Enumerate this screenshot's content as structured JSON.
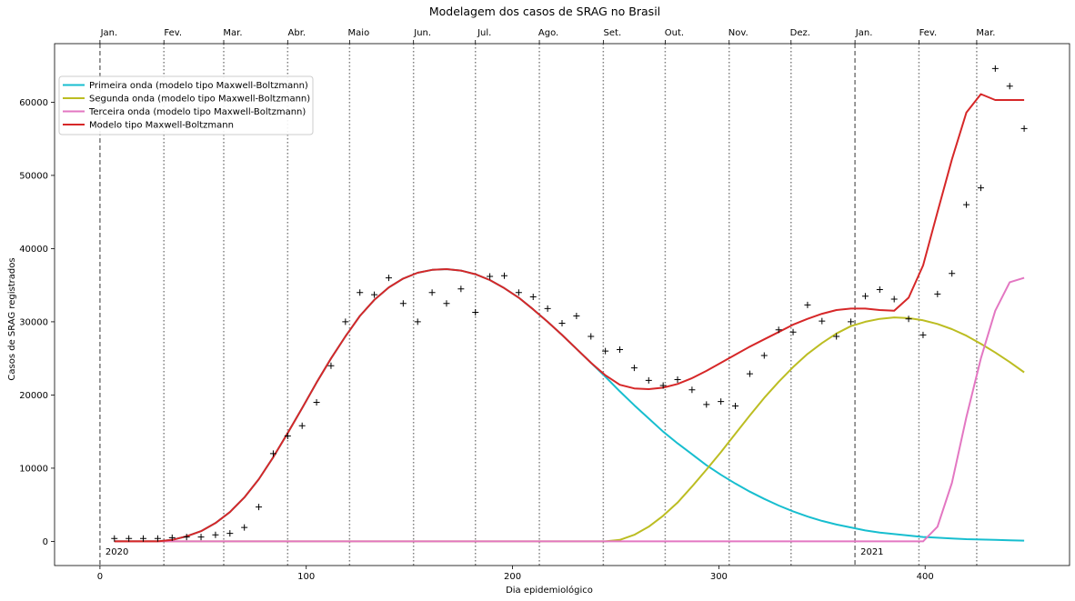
{
  "chart_data": {
    "type": "line",
    "title": "Modelagem dos casos de SRAG no Brasil",
    "xlabel": "Dia epidemiológico",
    "ylabel": "Casos de SRAG registrados",
    "xlim": [
      -22,
      470
    ],
    "ylim": [
      -3300,
      68000
    ],
    "x_ticks": [
      0,
      100,
      200,
      300,
      400
    ],
    "y_ticks": [
      0,
      10000,
      20000,
      30000,
      40000,
      50000,
      60000
    ],
    "month_ticks": [
      {
        "label": "Jan.",
        "x": 0
      },
      {
        "label": "Fev.",
        "x": 31
      },
      {
        "label": "Mar.",
        "x": 60
      },
      {
        "label": "Abr.",
        "x": 91
      },
      {
        "label": "Maio",
        "x": 121
      },
      {
        "label": "Jun.",
        "x": 152
      },
      {
        "label": "Jul.",
        "x": 182
      },
      {
        "label": "Ago.",
        "x": 213
      },
      {
        "label": "Set.",
        "x": 244
      },
      {
        "label": "Out.",
        "x": 274
      },
      {
        "label": "Nov.",
        "x": 305
      },
      {
        "label": "Dez.",
        "x": 335
      },
      {
        "label": "Jan.",
        "x": 366
      },
      {
        "label": "Fev.",
        "x": 397
      },
      {
        "label": "Mar.",
        "x": 425
      }
    ],
    "year_markers": [
      {
        "label": "2020",
        "x": 0
      },
      {
        "label": "2021",
        "x": 366
      }
    ],
    "legend_position": "top-left",
    "grid": false,
    "x": [
      7,
      14,
      21,
      28,
      35,
      42,
      49,
      56,
      63,
      70,
      77,
      84,
      91,
      98,
      105,
      112,
      119,
      126,
      133,
      140,
      147,
      154,
      161,
      168,
      175,
      182,
      189,
      196,
      203,
      210,
      217,
      224,
      231,
      238,
      245,
      252,
      259,
      266,
      273,
      280,
      287,
      294,
      301,
      308,
      315,
      322,
      329,
      336,
      343,
      350,
      357,
      364,
      371,
      378,
      385,
      392,
      399,
      406,
      413,
      420,
      427,
      434,
      441,
      448
    ],
    "series": [
      {
        "name": "Primeira onda (modelo tipo Maxwell-Boltzmann)",
        "color": "#17becf",
        "values": [
          0,
          0,
          0,
          0,
          200,
          700,
          1400,
          2500,
          4000,
          6000,
          8500,
          11500,
          14800,
          18200,
          21700,
          25000,
          28000,
          30800,
          33000,
          34700,
          35900,
          36700,
          37100,
          37200,
          37000,
          36500,
          35700,
          34600,
          33300,
          31700,
          30000,
          28200,
          26300,
          24400,
          22500,
          20500,
          18600,
          16800,
          15000,
          13400,
          11900,
          10400,
          9100,
          7900,
          6800,
          5800,
          4900,
          4100,
          3400,
          2800,
          2300,
          1900,
          1500,
          1200,
          1000,
          800,
          600,
          500,
          400,
          300,
          250,
          200,
          150,
          100
        ]
      },
      {
        "name": "Segunda onda (modelo tipo Maxwell-Boltzmann)",
        "color": "#bcbd22",
        "values": [
          0,
          0,
          0,
          0,
          0,
          0,
          0,
          0,
          0,
          0,
          0,
          0,
          0,
          0,
          0,
          0,
          0,
          0,
          0,
          0,
          0,
          0,
          0,
          0,
          0,
          0,
          0,
          0,
          0,
          0,
          0,
          0,
          0,
          0,
          0,
          200,
          900,
          2000,
          3500,
          5300,
          7500,
          9800,
          12200,
          14700,
          17200,
          19600,
          21800,
          23800,
          25600,
          27100,
          28400,
          29400,
          30000,
          30400,
          30600,
          30500,
          30200,
          29700,
          29000,
          28100,
          27000,
          25800,
          24500,
          23100
        ]
      },
      {
        "name": "Terceira onda (modelo tipo Maxwell-Boltzmann)",
        "color": "#e377c2",
        "values": [
          0,
          0,
          0,
          0,
          0,
          0,
          0,
          0,
          0,
          0,
          0,
          0,
          0,
          0,
          0,
          0,
          0,
          0,
          0,
          0,
          0,
          0,
          0,
          0,
          0,
          0,
          0,
          0,
          0,
          0,
          0,
          0,
          0,
          0,
          0,
          0,
          0,
          0,
          0,
          0,
          0,
          0,
          0,
          0,
          0,
          0,
          0,
          0,
          0,
          0,
          0,
          0,
          0,
          0,
          0,
          0,
          0,
          2000,
          8000,
          17000,
          25000,
          31500,
          35400,
          36000
        ]
      },
      {
        "name": "Modelo tipo Maxwell-Boltzmann",
        "color": "#d62728",
        "values": [
          0,
          0,
          0,
          0,
          200,
          700,
          1400,
          2500,
          4000,
          6000,
          8500,
          11500,
          14800,
          18200,
          21700,
          25000,
          28000,
          30800,
          33000,
          34700,
          35900,
          36700,
          37100,
          37200,
          37000,
          36500,
          35700,
          34600,
          33300,
          31700,
          30000,
          28200,
          26300,
          24400,
          22700,
          21400,
          20900,
          20800,
          21000,
          21500,
          22300,
          23300,
          24400,
          25500,
          26600,
          27600,
          28600,
          29600,
          30400,
          31100,
          31600,
          31800,
          31800,
          31600,
          31500,
          33300,
          37700,
          45000,
          52200,
          58600,
          61100,
          60300,
          60300,
          60300
        ]
      }
    ],
    "observed": {
      "marker": "+",
      "x": [
        7,
        14,
        21,
        28,
        35,
        42,
        49,
        56,
        63,
        70,
        77,
        84,
        91,
        98,
        105,
        112,
        119,
        126,
        133,
        140,
        147,
        154,
        161,
        168,
        175,
        182,
        189,
        196,
        203,
        210,
        217,
        224,
        231,
        238,
        245,
        252,
        259,
        266,
        273,
        280,
        287,
        294,
        301,
        308,
        315,
        322,
        329,
        336,
        343,
        350,
        357,
        364,
        371,
        378,
        385,
        392,
        399,
        406,
        413,
        420,
        427,
        434,
        441,
        448
      ],
      "y": [
        400,
        400,
        400,
        400,
        500,
        600,
        600,
        900,
        1100,
        1900,
        4700,
        12000,
        14400,
        15800,
        19000,
        24000,
        30000,
        34000,
        33700,
        36000,
        32500,
        30000,
        34000,
        32500,
        34500,
        31300,
        36200,
        36300,
        34000,
        33400,
        31800,
        29800,
        30800,
        28000,
        26000,
        26200,
        23700,
        22000,
        21300,
        22100,
        20700,
        18700,
        19100,
        18500,
        22900,
        25400,
        28900,
        28600,
        32300,
        30100,
        28000,
        30000,
        33500,
        34400,
        33100,
        30400,
        28200,
        33800,
        36600,
        46000,
        48300,
        64600,
        62200,
        56400
      ]
    }
  }
}
